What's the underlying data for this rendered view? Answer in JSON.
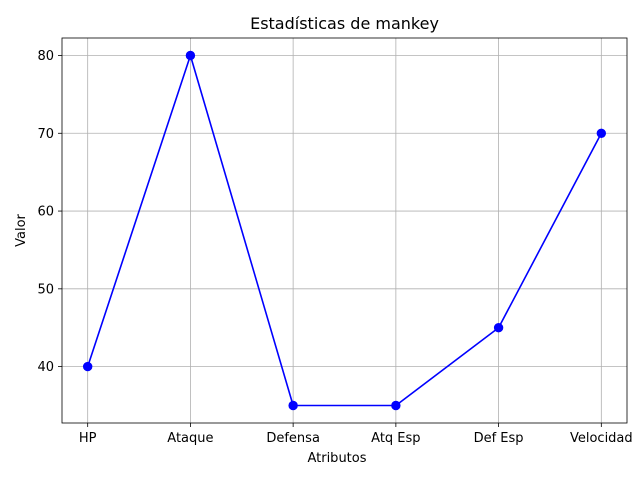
{
  "chart_data": {
    "type": "line",
    "title": "Estadísticas de mankey",
    "xlabel": "Atributos",
    "ylabel": "Valor",
    "categories": [
      "HP",
      "Ataque",
      "Defensa",
      "Atq Esp",
      "Def Esp",
      "Velocidad"
    ],
    "series": [
      {
        "values": [
          40,
          80,
          35,
          35,
          45,
          70
        ],
        "color": "#0000ff",
        "marker": "circle"
      }
    ],
    "ylim": [
      32.75,
      82.25
    ],
    "yticks": [
      40,
      50,
      60,
      70,
      80
    ],
    "grid": true,
    "legend": "none"
  }
}
